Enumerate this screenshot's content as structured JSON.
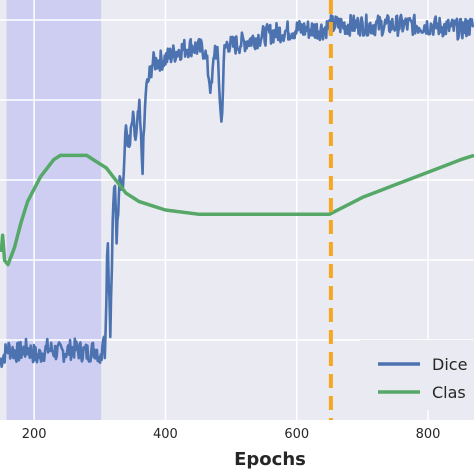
{
  "chart_data": {
    "type": "line",
    "xlabel": "Epochs",
    "ylabel": "",
    "title": "",
    "xlim": [
      148,
      870
    ],
    "x_ticks": [
      200,
      400,
      600,
      800
    ],
    "grid": true,
    "shaded_region": {
      "x": [
        158,
        302
      ],
      "color": "#c9c9f2"
    },
    "vline": {
      "x": 652,
      "color": "#f5a623",
      "style": "dashed"
    },
    "legend": {
      "position": "bottom-right",
      "entries": [
        "Dice",
        "Clas"
      ]
    },
    "series": [
      {
        "name": "Dice",
        "color": "#4c72b0",
        "x": [
          148,
          160,
          175,
          190,
          205,
          220,
          240,
          260,
          280,
          295,
          302,
          305,
          308,
          312,
          316,
          320,
          323,
          326,
          330,
          335,
          340,
          345,
          350,
          355,
          360,
          365,
          370,
          380,
          400,
          420,
          440,
          460,
          470,
          475,
          480,
          485,
          490,
          495,
          500,
          520,
          540,
          560,
          600,
          620,
          640,
          652,
          670,
          700,
          750,
          800,
          850,
          870
        ],
        "y": [
          0.14,
          0.17,
          0.16,
          0.17,
          0.15,
          0.17,
          0.16,
          0.17,
          0.16,
          0.17,
          0.14,
          0.22,
          0.16,
          0.45,
          0.2,
          0.48,
          0.58,
          0.42,
          0.6,
          0.55,
          0.7,
          0.64,
          0.72,
          0.66,
          0.75,
          0.6,
          0.78,
          0.85,
          0.86,
          0.88,
          0.89,
          0.88,
          0.78,
          0.89,
          0.86,
          0.7,
          0.88,
          0.9,
          0.89,
          0.9,
          0.91,
          0.92,
          0.93,
          0.93,
          0.93,
          0.94,
          0.94,
          0.94,
          0.94,
          0.94,
          0.93,
          0.94
        ],
        "noise": 0.025
      },
      {
        "name": "Clas",
        "color": "#55a868",
        "x": [
          150,
          152,
          155,
          160,
          165,
          170,
          180,
          190,
          200,
          210,
          220,
          230,
          240,
          250,
          260,
          270,
          280,
          290,
          300,
          310,
          320,
          330,
          340,
          350,
          360,
          380,
          400,
          450,
          500,
          550,
          600,
          650,
          700,
          750,
          800,
          850,
          870
        ],
        "y": [
          0.4,
          0.44,
          0.38,
          0.37,
          0.39,
          0.41,
          0.47,
          0.52,
          0.55,
          0.58,
          0.6,
          0.62,
          0.63,
          0.63,
          0.63,
          0.63,
          0.63,
          0.62,
          0.61,
          0.6,
          0.58,
          0.56,
          0.54,
          0.53,
          0.52,
          0.51,
          0.5,
          0.49,
          0.49,
          0.49,
          0.49,
          0.49,
          0.53,
          0.56,
          0.59,
          0.62,
          0.63
        ]
      }
    ]
  }
}
